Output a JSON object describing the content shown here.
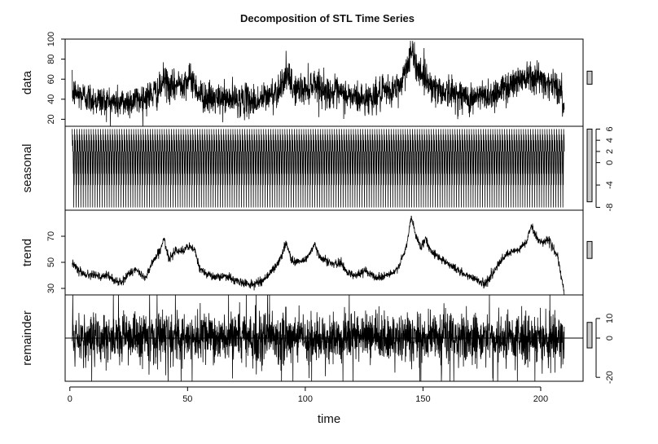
{
  "chart_data": {
    "type": "line",
    "title": "Decomposition of STL Time Series",
    "xlabel": "time",
    "x_ticks": [
      0,
      50,
      100,
      150,
      200
    ],
    "xlim": [
      -2,
      218
    ],
    "x_start": 1,
    "x_end": 210,
    "n_points": 2500,
    "panels": [
      {
        "name": "data",
        "ylabel": "data",
        "ylim": [
          13,
          100
        ],
        "ticks": [
          20,
          40,
          60,
          80,
          100
        ],
        "tick_side": "left",
        "line_color": "#000000",
        "anchors": [
          [
            1,
            47
          ],
          [
            10,
            40
          ],
          [
            20,
            36
          ],
          [
            30,
            40
          ],
          [
            38,
            48
          ],
          [
            40,
            60
          ],
          [
            43,
            50
          ],
          [
            47,
            57
          ],
          [
            52,
            60
          ],
          [
            55,
            45
          ],
          [
            60,
            40
          ],
          [
            70,
            40
          ],
          [
            80,
            38
          ],
          [
            88,
            48
          ],
          [
            92,
            65
          ],
          [
            95,
            50
          ],
          [
            100,
            50
          ],
          [
            104,
            57
          ],
          [
            108,
            48
          ],
          [
            115,
            45
          ],
          [
            125,
            40
          ],
          [
            135,
            47
          ],
          [
            140,
            52
          ],
          [
            145,
            87
          ],
          [
            148,
            70
          ],
          [
            150,
            65
          ],
          [
            155,
            50
          ],
          [
            165,
            45
          ],
          [
            170,
            40
          ],
          [
            175,
            43
          ],
          [
            180,
            45
          ],
          [
            185,
            52
          ],
          [
            190,
            58
          ],
          [
            195,
            66
          ],
          [
            198,
            62
          ],
          [
            200,
            60
          ],
          [
            205,
            55
          ],
          [
            208,
            50
          ],
          [
            210,
            30
          ]
        ],
        "noise_sd": 8,
        "bar_range": [
          55,
          68
        ]
      },
      {
        "name": "seasonal",
        "ylabel": "seasonal",
        "ylim": [
          -8.5,
          6.5
        ],
        "ticks": [
          -8,
          -4,
          0,
          2,
          4,
          6
        ],
        "tick_side": "right",
        "line_color": "#000000",
        "seasonal_period": 0.5,
        "seasonal_profile": [
          6,
          3,
          5,
          2,
          4,
          1,
          -2,
          0,
          -8,
          2,
          -4,
          1
        ],
        "bar_range": [
          -7,
          6
        ]
      },
      {
        "name": "trend",
        "ylabel": "trend",
        "ylim": [
          25,
          90
        ],
        "ticks": [
          30,
          50,
          70
        ],
        "tick_side": "left",
        "line_color": "#000000",
        "anchors": [
          [
            1,
            50
          ],
          [
            3,
            46
          ],
          [
            5,
            42
          ],
          [
            8,
            40
          ],
          [
            10,
            42
          ],
          [
            13,
            38
          ],
          [
            16,
            40
          ],
          [
            19,
            36
          ],
          [
            22,
            34
          ],
          [
            25,
            42
          ],
          [
            28,
            44
          ],
          [
            32,
            38
          ],
          [
            35,
            50
          ],
          [
            38,
            58
          ],
          [
            40,
            68
          ],
          [
            42,
            52
          ],
          [
            45,
            60
          ],
          [
            48,
            58
          ],
          [
            50,
            62
          ],
          [
            53,
            60
          ],
          [
            55,
            45
          ],
          [
            58,
            42
          ],
          [
            62,
            38
          ],
          [
            66,
            40
          ],
          [
            70,
            36
          ],
          [
            74,
            34
          ],
          [
            78,
            33
          ],
          [
            82,
            36
          ],
          [
            86,
            44
          ],
          [
            88,
            48
          ],
          [
            90,
            55
          ],
          [
            92,
            66
          ],
          [
            94,
            52
          ],
          [
            97,
            50
          ],
          [
            100,
            52
          ],
          [
            104,
            63
          ],
          [
            106,
            55
          ],
          [
            110,
            50
          ],
          [
            113,
            48
          ],
          [
            115,
            50
          ],
          [
            118,
            42
          ],
          [
            122,
            40
          ],
          [
            126,
            44
          ],
          [
            130,
            38
          ],
          [
            134,
            40
          ],
          [
            138,
            42
          ],
          [
            141,
            52
          ],
          [
            143,
            62
          ],
          [
            145,
            85
          ],
          [
            147,
            70
          ],
          [
            149,
            62
          ],
          [
            151,
            68
          ],
          [
            153,
            60
          ],
          [
            156,
            55
          ],
          [
            160,
            50
          ],
          [
            164,
            45
          ],
          [
            168,
            40
          ],
          [
            172,
            38
          ],
          [
            176,
            33
          ],
          [
            179,
            40
          ],
          [
            182,
            48
          ],
          [
            185,
            55
          ],
          [
            188,
            58
          ],
          [
            191,
            60
          ],
          [
            194,
            66
          ],
          [
            196,
            78
          ],
          [
            198,
            70
          ],
          [
            200,
            65
          ],
          [
            203,
            68
          ],
          [
            205,
            62
          ],
          [
            207,
            55
          ],
          [
            208,
            46
          ],
          [
            209,
            36
          ],
          [
            210,
            27
          ]
        ],
        "noise_sd": 1.6,
        "bar_range": [
          53,
          66
        ]
      },
      {
        "name": "remainder",
        "ylabel": "remainder",
        "ylim": [
          -22,
          22
        ],
        "ticks": [
          -20,
          0,
          10
        ],
        "tick_side": "right",
        "zero_line": true,
        "line_color": "#000000",
        "noise_sd": 6,
        "bar_range": [
          -5,
          8
        ]
      }
    ]
  }
}
